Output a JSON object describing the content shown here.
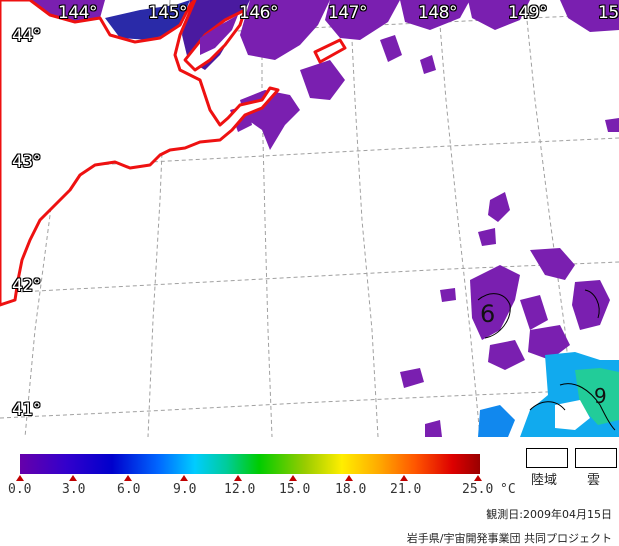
{
  "map": {
    "longitude_labels": [
      "144°",
      "145°",
      "146°",
      "147°",
      "148°",
      "149°",
      "15"
    ],
    "latitude_labels": [
      "44°",
      "43°",
      "42°",
      "41°"
    ],
    "contour_labels": [
      "6",
      "9"
    ],
    "colors": {
      "coastline": "#ee1111",
      "land": "#ffffff",
      "graticule": "#aaaaaa",
      "cold_pixels": "#7a1fb0",
      "warm_pixels": "#22aaff"
    }
  },
  "legend": {
    "scale_title": "",
    "ticks": [
      "0.0",
      "3.0",
      "6.0",
      "9.0",
      "12.0",
      "15.0",
      "18.0",
      "21.0",
      "25.0"
    ],
    "unit": "°C",
    "key_land": "陸域",
    "key_cloud": "雲",
    "observation_date": "観測日:2009年04月15日",
    "credit": "岩手県/宇宙開発事業団 共同プロジェクト"
  }
}
